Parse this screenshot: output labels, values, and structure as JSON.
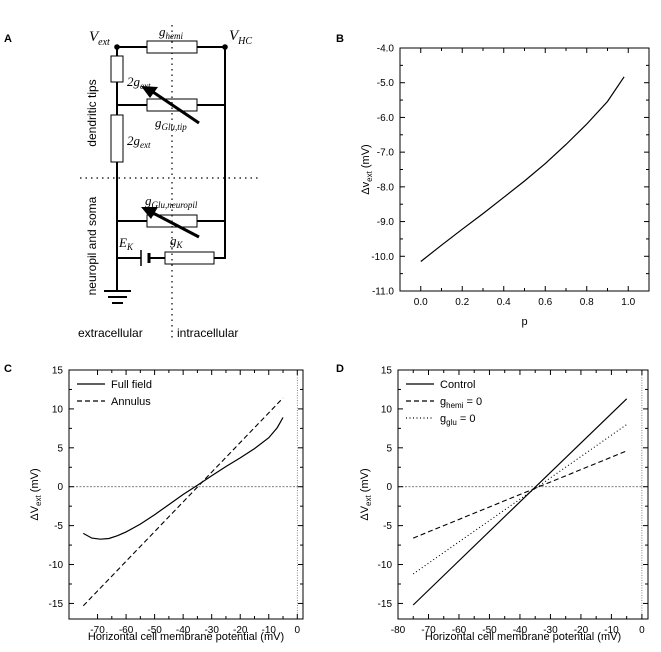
{
  "panels": {
    "a": {
      "letter": "A",
      "labels": {
        "v_ext": "V",
        "v_ext_sub": "ext",
        "v_hc": "V",
        "v_hc_sub": "HC",
        "g_hemi": "g",
        "g_hemi_sub": "hemi",
        "g_ext_top": "2g",
        "g_ext_top_sub": "ext",
        "g_glu_tip": "g",
        "g_glu_tip_sub": "Glu,tip",
        "g_ext_bot": "2g",
        "g_ext_bot_sub": "ext",
        "g_glu_np": "g",
        "g_glu_np_sub": "Glu,neuropil",
        "e_k": "E",
        "e_k_sub": "K",
        "g_k": "g",
        "g_k_sub": "K",
        "dendritic_tips": "dendritic tips",
        "neuropil_soma": "neuropil and soma",
        "extracellular": "extracellular",
        "intracellular": "intracellular"
      }
    },
    "b": {
      "letter": "B"
    },
    "c": {
      "letter": "C"
    },
    "d": {
      "letter": "D"
    }
  },
  "chart_data": [
    {
      "panel": "B",
      "type": "line",
      "xlabel": "p",
      "ylabel": "Δv",
      "ylabel_sub": "ext",
      "ylabel_unit": " (mV)",
      "xlim": [
        -0.1,
        1.1
      ],
      "ylim": [
        -11.0,
        -4.0
      ],
      "xticks": [
        0.0,
        0.2,
        0.4,
        0.6,
        0.8,
        1.0
      ],
      "xtick_labels": [
        "0.0",
        "0.2",
        "0.4",
        "0.6",
        "0.8",
        "1.0"
      ],
      "yticks": [
        -11.0,
        -10.0,
        -9.0,
        -8.0,
        -7.0,
        -6.0,
        -5.0,
        -4.0
      ],
      "ytick_labels": [
        "-11.0",
        "-10.0",
        "-9.0",
        "-8.0",
        "-7.0",
        "-6.0",
        "-5.0",
        "-4.0"
      ],
      "series": [
        {
          "style": "solid",
          "x": [
            0.0,
            0.1,
            0.2,
            0.3,
            0.4,
            0.5,
            0.6,
            0.7,
            0.8,
            0.9,
            0.98
          ],
          "y": [
            -10.15,
            -9.68,
            -9.22,
            -8.77,
            -8.3,
            -7.83,
            -7.33,
            -6.78,
            -6.19,
            -5.54,
            -4.83
          ]
        }
      ]
    },
    {
      "panel": "C",
      "type": "line",
      "xlabel": "Horizontal cell membrane potential (mV)",
      "ylabel": "ΔV",
      "ylabel_sub": "ext",
      "ylabel_unit": " (mV)",
      "xlim": [
        -80,
        2
      ],
      "ylim": [
        -17,
        15
      ],
      "xticks": [
        -70,
        -60,
        -50,
        -40,
        -30,
        -20,
        -10,
        0
      ],
      "xtick_labels": [
        "-70",
        "-60",
        "-50",
        "-40",
        "-30",
        "-20",
        "-10",
        "0"
      ],
      "yticks": [
        -15,
        -10,
        -5,
        0,
        5,
        10,
        15
      ],
      "ytick_labels": [
        "-15",
        "-10",
        "-5",
        "0",
        "5",
        "10",
        "15"
      ],
      "zero_lines": true,
      "legend": "top-left",
      "series": [
        {
          "name": "Full field",
          "style": "solid",
          "x": [
            -75,
            -72,
            -69,
            -66,
            -63,
            -60,
            -55,
            -50,
            -45,
            -40,
            -35,
            -30,
            -25,
            -20,
            -15,
            -10,
            -7,
            -5
          ],
          "y": [
            -6.0,
            -6.6,
            -6.75,
            -6.65,
            -6.3,
            -5.8,
            -4.8,
            -3.6,
            -2.3,
            -1.0,
            0.2,
            1.4,
            2.6,
            3.7,
            4.9,
            6.3,
            7.6,
            8.9
          ]
        },
        {
          "name": "Annulus",
          "style": "dashed",
          "x": [
            -75,
            -5
          ],
          "y": [
            -15.3,
            11.4
          ]
        }
      ]
    },
    {
      "panel": "D",
      "type": "line",
      "xlabel": "Horizontal cell membrane potential (mV)",
      "ylabel": "ΔV",
      "ylabel_sub": "ext",
      "ylabel_unit": " (mV)",
      "xlim": [
        -80,
        2
      ],
      "ylim": [
        -17,
        15
      ],
      "xticks": [
        -80,
        -70,
        -60,
        -50,
        -40,
        -30,
        -20,
        -10,
        0
      ],
      "xtick_labels": [
        "-80",
        "-70",
        "-60",
        "-50",
        "-40",
        "-30",
        "-20",
        "-10",
        "0"
      ],
      "yticks": [
        -15,
        -10,
        -5,
        0,
        5,
        10,
        15
      ],
      "ytick_labels": [
        "-15",
        "-10",
        "-5",
        "0",
        "5",
        "10",
        "15"
      ],
      "zero_lines": true,
      "legend": "top-left",
      "series": [
        {
          "name": "Control",
          "style": "solid",
          "x": [
            -75,
            -5
          ],
          "y": [
            -15.2,
            11.3
          ]
        },
        {
          "name": "g",
          "name_sub": "hemi",
          "name_suffix": " = 0",
          "style": "dashed",
          "x": [
            -75,
            -5
          ],
          "y": [
            -6.6,
            4.6
          ]
        },
        {
          "name": "g",
          "name_sub": "glu",
          "name_suffix": " = 0",
          "style": "dotted",
          "x": [
            -75,
            -5
          ],
          "y": [
            -11.2,
            8.0
          ]
        }
      ]
    }
  ]
}
